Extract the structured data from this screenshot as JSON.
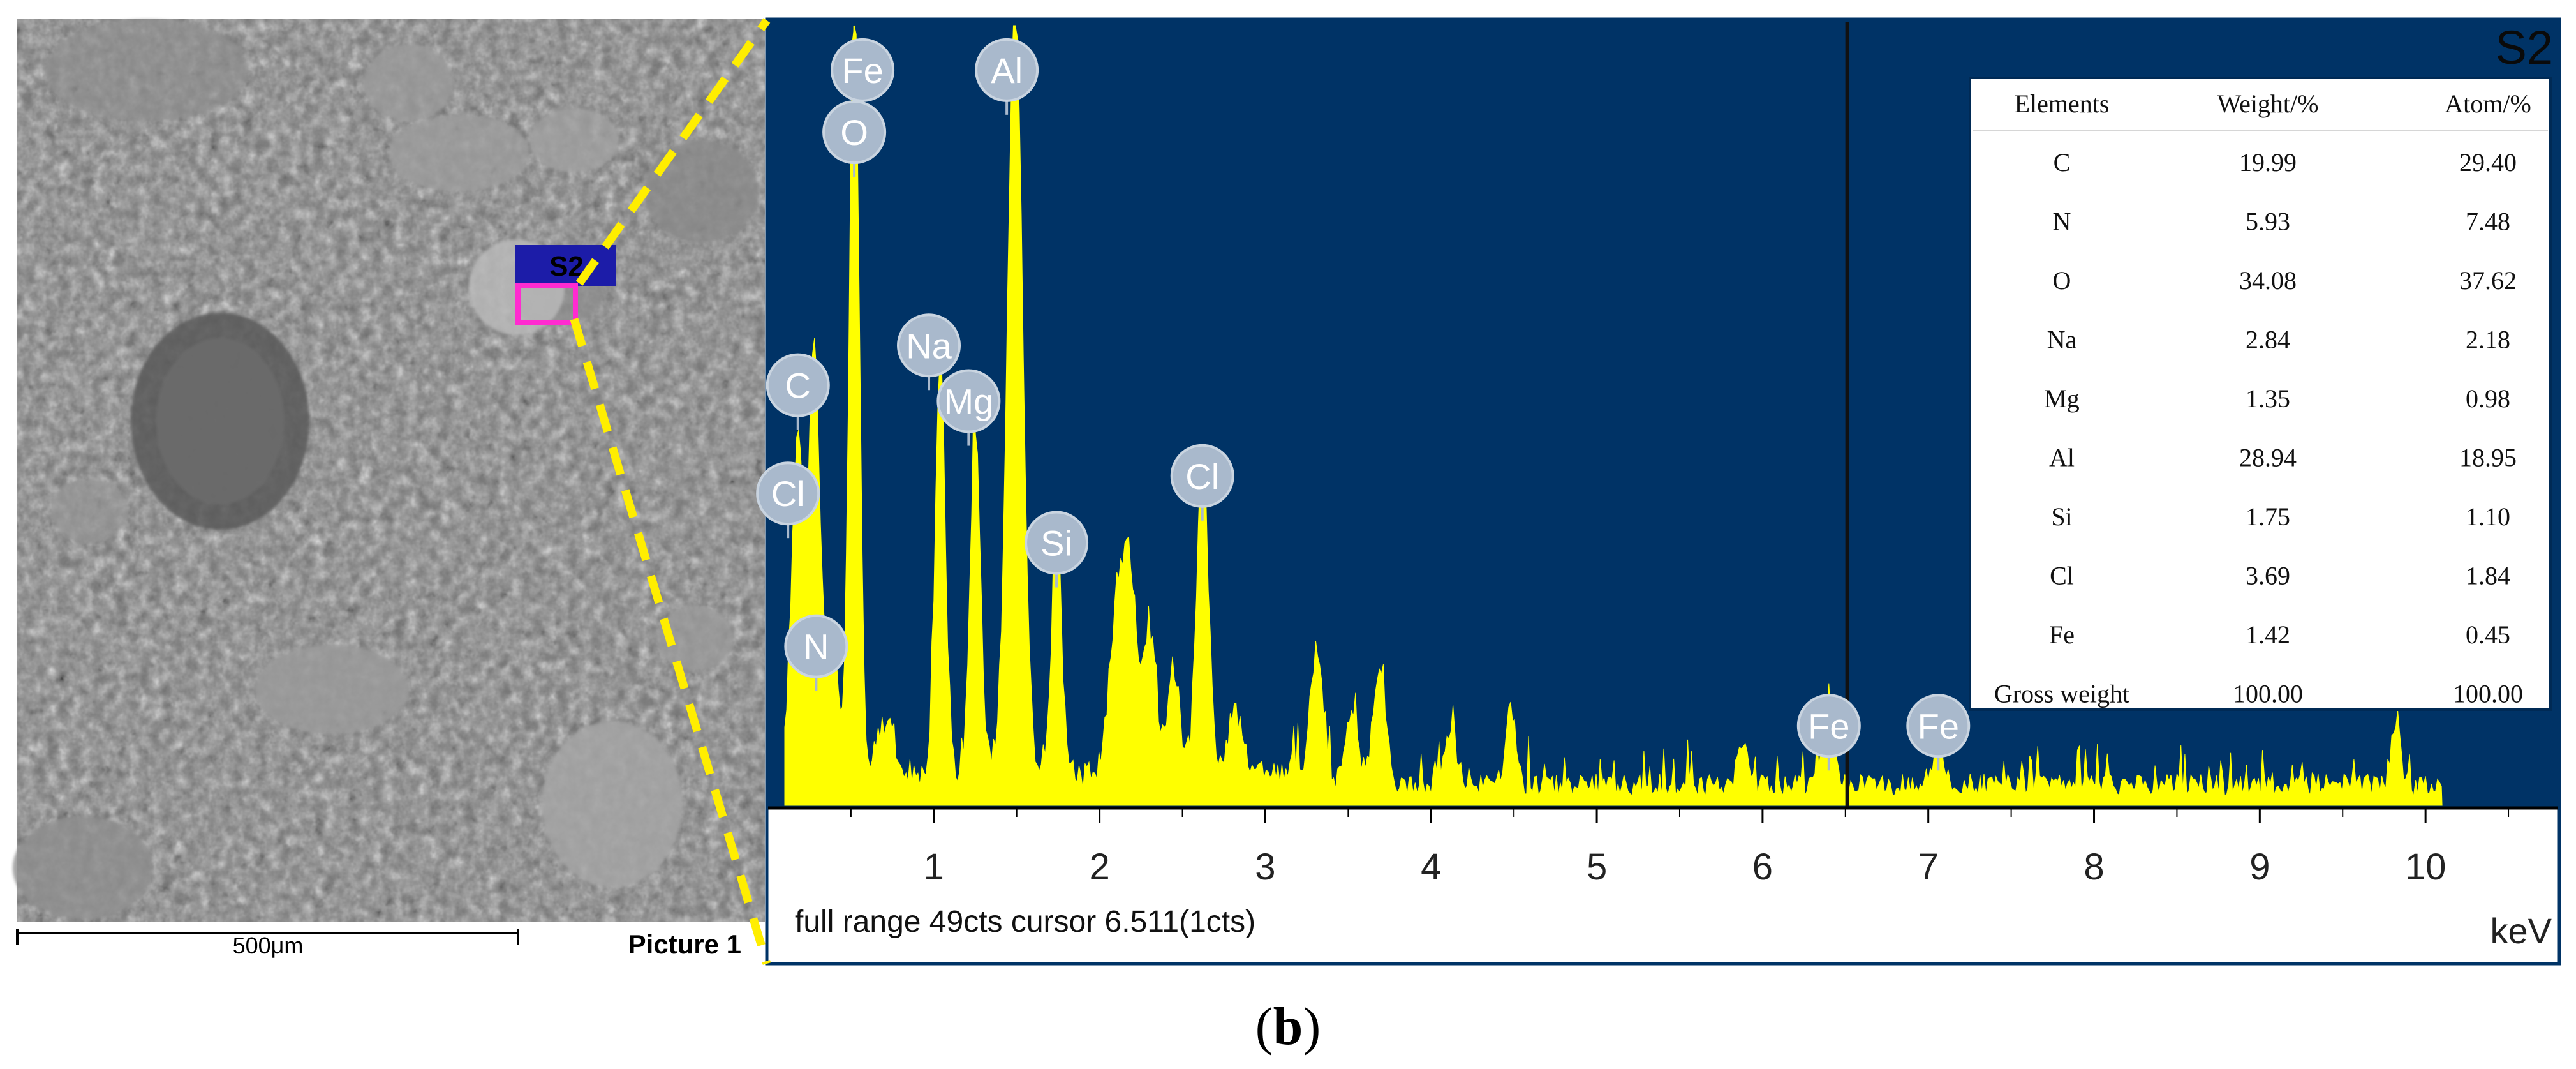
{
  "sem": {
    "scale_bar_label": "500μm",
    "picture_label": "Picture 1",
    "site_label": "S2"
  },
  "chart_data": {
    "type": "area",
    "title": "S2",
    "xlabel": "keV",
    "ylabel": "",
    "xlim": [
      0,
      10.8
    ],
    "ylim": [
      0,
      49
    ],
    "x_ticks": [
      "1",
      "2",
      "3",
      "4",
      "5",
      "6",
      "7",
      "8",
      "9",
      "10"
    ],
    "grid": false,
    "legend": "none",
    "status_text": "full range 49cts cursor 6.511(1cts)",
    "cursor_kev": 6.511,
    "colors": {
      "background": "#003366",
      "spectrum": "#ffff00",
      "marker": "#a9b9cc",
      "cursor": "#111111"
    },
    "peaks": [
      {
        "x": 0.18,
        "y": 21.0,
        "w": 0.035
      },
      {
        "x": 0.28,
        "y": 26.0,
        "w": 0.035
      },
      {
        "x": 0.39,
        "y": 10.0,
        "w": 0.03
      },
      {
        "x": 0.52,
        "y": 49.0,
        "w": 0.03
      },
      {
        "x": 0.71,
        "y": 3.5,
        "w": 0.05
      },
      {
        "x": 1.04,
        "y": 26.0,
        "w": 0.03
      },
      {
        "x": 1.25,
        "y": 22.0,
        "w": 0.03
      },
      {
        "x": 1.49,
        "y": 49.0,
        "w": 0.045
      },
      {
        "x": 1.74,
        "y": 16.0,
        "w": 0.03
      },
      {
        "x": 2.1,
        "y": 10.0,
        "w": 0.04
      },
      {
        "x": 2.18,
        "y": 12.5,
        "w": 0.04
      },
      {
        "x": 2.3,
        "y": 9.0,
        "w": 0.04
      },
      {
        "x": 2.44,
        "y": 6.0,
        "w": 0.04
      },
      {
        "x": 2.62,
        "y": 20.0,
        "w": 0.035
      },
      {
        "x": 2.82,
        "y": 4.0,
        "w": 0.04
      },
      {
        "x": 3.31,
        "y": 8.5,
        "w": 0.04
      },
      {
        "x": 3.52,
        "y": 4.5,
        "w": 0.04
      },
      {
        "x": 3.69,
        "y": 7.0,
        "w": 0.04
      },
      {
        "x": 4.12,
        "y": 3.0,
        "w": 0.04
      },
      {
        "x": 4.48,
        "y": 5.0,
        "w": 0.03
      },
      {
        "x": 5.88,
        "y": 3.0,
        "w": 0.03
      },
      {
        "x": 6.4,
        "y": 4.0,
        "w": 0.035
      },
      {
        "x": 7.06,
        "y": 2.5,
        "w": 0.035
      },
      {
        "x": 9.82,
        "y": 3.5,
        "w": 0.03
      }
    ],
    "element_markers": [
      {
        "label": "Fe",
        "x": 0.57,
        "y": 46.2
      },
      {
        "label": "O",
        "x": 0.52,
        "y": 42.3
      },
      {
        "label": "Al",
        "x": 1.44,
        "y": 46.2
      },
      {
        "label": "Na",
        "x": 0.97,
        "y": 28.9
      },
      {
        "label": "Mg",
        "x": 1.21,
        "y": 25.4
      },
      {
        "label": "C",
        "x": 0.18,
        "y": 26.4
      },
      {
        "label": "Cl",
        "x": 0.12,
        "y": 19.6
      },
      {
        "label": "Si",
        "x": 1.74,
        "y": 16.5
      },
      {
        "label": "Cl",
        "x": 2.62,
        "y": 20.7
      },
      {
        "label": "N",
        "x": 0.29,
        "y": 10.0
      },
      {
        "label": "Fe",
        "x": 6.4,
        "y": 5.0
      },
      {
        "label": "Fe",
        "x": 7.06,
        "y": 5.0
      }
    ],
    "table": {
      "headers": [
        "Elements",
        "Weight/%",
        "Atom/%"
      ],
      "rows": [
        [
          "C",
          "19.99",
          "29.40"
        ],
        [
          "N",
          "5.93",
          "7.48"
        ],
        [
          "O",
          "34.08",
          "37.62"
        ],
        [
          "Na",
          "2.84",
          "2.18"
        ],
        [
          "Mg",
          "1.35",
          "0.98"
        ],
        [
          "Al",
          "28.94",
          "18.95"
        ],
        [
          "Si",
          "1.75",
          "1.10"
        ],
        [
          "Cl",
          "3.69",
          "1.84"
        ],
        [
          "Fe",
          "1.42",
          "0.45"
        ],
        [
          "Gross weight",
          "100.00",
          "100.00"
        ]
      ]
    }
  },
  "caption": {
    "open": "(",
    "letter": "b",
    "close": ")"
  }
}
